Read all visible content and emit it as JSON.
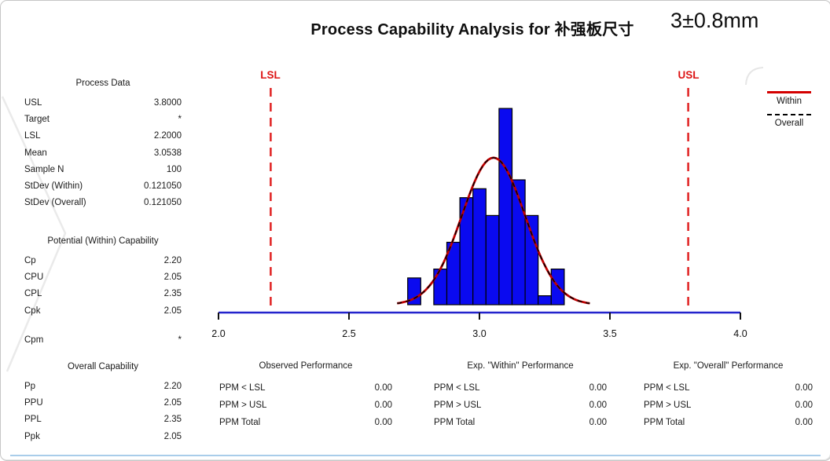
{
  "process_data": {
    "header": "Process Data",
    "rows": [
      {
        "label": "USL",
        "value": "3.8000"
      },
      {
        "label": "Target",
        "value": "*"
      },
      {
        "label": "LSL",
        "value": "2.2000"
      },
      {
        "label": "Mean",
        "value": "3.0538"
      },
      {
        "label": "Sample N",
        "value": "100"
      },
      {
        "label": "StDev (Within)",
        "value": "0.121050"
      },
      {
        "label": "StDev (Overall)",
        "value": "0.121050"
      }
    ]
  },
  "within_capability": {
    "header": "Potential (Within) Capability",
    "rows": [
      {
        "label": "Cp",
        "value": "2.20"
      },
      {
        "label": "CPU",
        "value": "2.05"
      },
      {
        "label": "CPL",
        "value": "2.35"
      },
      {
        "label": "Cpk",
        "value": "2.05"
      },
      {
        "label": "Cpm",
        "value": "*"
      }
    ]
  },
  "overall_capability": {
    "header": "Overall Capability",
    "rows": [
      {
        "label": "Pp",
        "value": "2.20"
      },
      {
        "label": "PPU",
        "value": "2.05"
      },
      {
        "label": "PPL",
        "value": "2.35"
      },
      {
        "label": "Ppk",
        "value": "2.05"
      }
    ]
  },
  "performance": {
    "observed": {
      "header": "Observed Performance",
      "rows": [
        {
          "label": "PPM < LSL",
          "value": "0.00"
        },
        {
          "label": "PPM > USL",
          "value": "0.00"
        },
        {
          "label": "PPM Total",
          "value": "0.00"
        }
      ]
    },
    "exp_within": {
      "header": "Exp. \"Within\" Performance",
      "rows": [
        {
          "label": "PPM < LSL",
          "value": "0.00"
        },
        {
          "label": "PPM > USL",
          "value": "0.00"
        },
        {
          "label": "PPM Total",
          "value": "0.00"
        }
      ]
    },
    "exp_overall": {
      "header": "Exp. \"Overall\" Performance",
      "rows": [
        {
          "label": "PPM < LSL",
          "value": "0.00"
        },
        {
          "label": "PPM > USL",
          "value": "0.00"
        },
        {
          "label": "PPM Total",
          "value": "0.00"
        }
      ]
    }
  },
  "chart_data": {
    "type": "bar",
    "subtype": "process-capability-histogram",
    "title": "Process Capability Analysis for 补强板尺寸",
    "annotation": "3±0.8mm",
    "lsl_label": "LSL",
    "usl_label": "USL",
    "lsl": 2.2,
    "usl": 3.8,
    "xlim": [
      2.0,
      4.0
    ],
    "x_ticks": [
      2.0,
      2.5,
      3.0,
      3.5,
      4.0
    ],
    "bins": {
      "width": 0.05,
      "centers": [
        2.75,
        2.8,
        2.85,
        2.9,
        2.95,
        3.0,
        3.05,
        3.1,
        3.15,
        3.2,
        3.25,
        3.3
      ],
      "counts": [
        3,
        0,
        4,
        7,
        12,
        13,
        10,
        22,
        14,
        10,
        1,
        4
      ]
    },
    "normal_curve": {
      "mean": 3.0538,
      "stdev": 0.12105,
      "n": 100
    },
    "legend": [
      {
        "label": "Within",
        "line": "solid-red"
      },
      {
        "label": "Overall",
        "line": "dashed-black"
      }
    ],
    "colors": {
      "bar": "#0a0af0",
      "bar_edge": "#000000",
      "curve_within": "#c00000",
      "curve_overall": "#000000",
      "spec_line": "#e02121",
      "axis": "#2323cc",
      "limit_label": "#dd1414"
    }
  }
}
